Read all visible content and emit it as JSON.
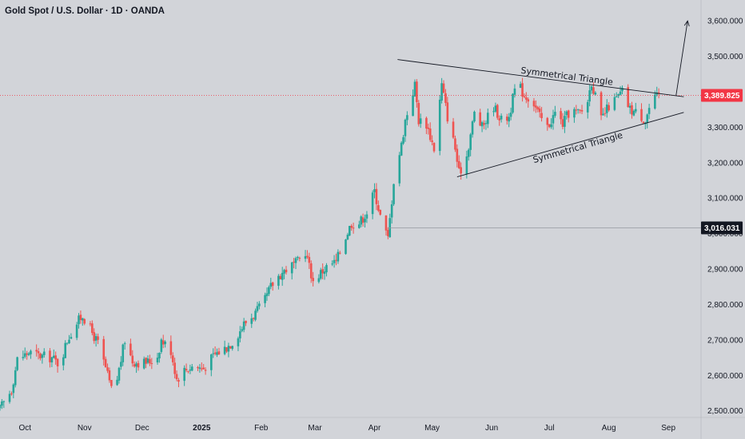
{
  "header": {
    "title": "Gold Spot / U.S. Dollar · 1D · OANDA"
  },
  "chart_data": {
    "type": "candlestick",
    "title": "Gold Spot / U.S. Dollar · 1D · OANDA",
    "xlabel": "",
    "ylabel": "",
    "ylim": [
      2470,
      3650
    ],
    "y_ticks": [
      2500,
      2600,
      2700,
      2800,
      2900,
      3000,
      3100,
      3200,
      3300,
      3400,
      3500,
      3600
    ],
    "y_tick_labels": [
      "2,500.000",
      "2,600.000",
      "2,700.000",
      "2,800.000",
      "2,900.000",
      "3,000.000",
      "3,100.000",
      "3,200.000",
      "3,300.000",
      "3,400.000",
      "3,500.000",
      "3,600.000"
    ],
    "x_ticks": [
      "2024-10-01",
      "2024-11-01",
      "2024-12-01",
      "2025-01-01",
      "2025-02-01",
      "2025-03-01",
      "2025-04-01",
      "2025-05-01",
      "2025-06-01",
      "2025-07-01",
      "2025-08-01",
      "2025-09-01"
    ],
    "x_tick_labels": [
      "Oct",
      "Nov",
      "Dec",
      "2025",
      "Feb",
      "Mar",
      "Apr",
      "May",
      "Jun",
      "Jul",
      "Aug",
      "Sep"
    ],
    "x_range": [
      "2024-09-18",
      "2025-09-18"
    ],
    "grid": false,
    "up_color": "#26a69a",
    "down_color": "#ef5350",
    "series": [
      {
        "name": "",
        "points": [
          [
            "2024-09-18",
            2505
          ],
          [
            "2024-09-24",
            2560
          ],
          [
            "2024-09-27",
            2645
          ],
          [
            "2024-10-03",
            2665
          ],
          [
            "2024-10-09",
            2655
          ],
          [
            "2024-10-15",
            2650
          ],
          [
            "2024-10-19",
            2630
          ],
          [
            "2024-10-23",
            2700
          ],
          [
            "2024-10-27",
            2740
          ],
          [
            "2024-10-31",
            2770
          ],
          [
            "2024-11-04",
            2730
          ],
          [
            "2024-11-08",
            2690
          ],
          [
            "2024-11-12",
            2620
          ],
          [
            "2024-11-15",
            2560
          ],
          [
            "2024-11-18",
            2590
          ],
          [
            "2024-11-22",
            2700
          ],
          [
            "2024-11-26",
            2640
          ],
          [
            "2024-12-01",
            2635
          ],
          [
            "2024-12-05",
            2640
          ],
          [
            "2024-12-09",
            2655
          ],
          [
            "2024-12-11",
            2700
          ],
          [
            "2024-12-16",
            2670
          ],
          [
            "2024-12-19",
            2590
          ],
          [
            "2024-12-23",
            2615
          ],
          [
            "2024-12-27",
            2625
          ],
          [
            "2025-01-02",
            2620
          ],
          [
            "2025-01-08",
            2660
          ],
          [
            "2025-01-14",
            2680
          ],
          [
            "2025-01-18",
            2700
          ],
          [
            "2025-01-23",
            2745
          ],
          [
            "2025-01-28",
            2770
          ],
          [
            "2025-02-02",
            2800
          ],
          [
            "2025-02-06",
            2850
          ],
          [
            "2025-02-10",
            2880
          ],
          [
            "2025-02-14",
            2900
          ],
          [
            "2025-02-20",
            2920
          ],
          [
            "2025-02-24",
            2950
          ],
          [
            "2025-02-28",
            2865
          ],
          [
            "2025-03-04",
            2890
          ],
          [
            "2025-03-08",
            2910
          ],
          [
            "2025-03-12",
            2920
          ],
          [
            "2025-03-16",
            2980
          ],
          [
            "2025-03-20",
            3030
          ],
          [
            "2025-03-24",
            3030
          ],
          [
            "2025-03-28",
            3060
          ],
          [
            "2025-04-01",
            3120
          ],
          [
            "2025-04-04",
            3050
          ],
          [
            "2025-04-08",
            2985
          ],
          [
            "2025-04-11",
            3150
          ],
          [
            "2025-04-15",
            3250
          ],
          [
            "2025-04-17",
            3320
          ],
          [
            "2025-04-22",
            3420
          ],
          [
            "2025-04-24",
            3320
          ],
          [
            "2025-04-28",
            3310
          ],
          [
            "2025-05-02",
            3240
          ],
          [
            "2025-05-06",
            3420
          ],
          [
            "2025-05-09",
            3330
          ],
          [
            "2025-05-13",
            3240
          ],
          [
            "2025-05-15",
            3170
          ],
          [
            "2025-05-19",
            3220
          ],
          [
            "2025-05-23",
            3340
          ],
          [
            "2025-05-27",
            3300
          ],
          [
            "2025-06-02",
            3360
          ],
          [
            "2025-06-06",
            3320
          ],
          [
            "2025-06-10",
            3330
          ],
          [
            "2025-06-14",
            3430
          ],
          [
            "2025-06-18",
            3390
          ],
          [
            "2025-06-22",
            3380
          ],
          [
            "2025-06-26",
            3330
          ],
          [
            "2025-06-30",
            3300
          ],
          [
            "2025-07-04",
            3340
          ],
          [
            "2025-07-08",
            3310
          ],
          [
            "2025-07-12",
            3350
          ],
          [
            "2025-07-16",
            3340
          ],
          [
            "2025-07-20",
            3350
          ],
          [
            "2025-07-23",
            3430
          ],
          [
            "2025-07-28",
            3320
          ],
          [
            "2025-08-01",
            3360
          ],
          [
            "2025-08-05",
            3380
          ],
          [
            "2025-08-08",
            3400
          ],
          [
            "2025-08-12",
            3350
          ],
          [
            "2025-08-16",
            3340
          ],
          [
            "2025-08-20",
            3320
          ],
          [
            "2025-08-23",
            3370
          ],
          [
            "2025-08-27",
            3390
          ]
        ]
      }
    ],
    "current_price": {
      "value": 3389.825,
      "label": "3,389.825",
      "color": "#f23645"
    },
    "horizontal_level": {
      "value": 3016.031,
      "label": "3,016.031"
    },
    "annotations": [
      {
        "text": "Symmetrical Triangle",
        "type": "resistance-line",
        "from": [
          "2025-04-13",
          3491
        ],
        "to": [
          "2025-09-09",
          3386
        ]
      },
      {
        "text": "Symmetrical Triangle",
        "type": "support-line",
        "from": [
          "2025-05-14",
          3160
        ],
        "to": [
          "2025-09-09",
          3342
        ]
      },
      {
        "type": "breakout-arrow",
        "from": [
          "2025-09-05",
          3390
        ],
        "to": [
          "2025-09-11",
          3600
        ]
      }
    ]
  }
}
